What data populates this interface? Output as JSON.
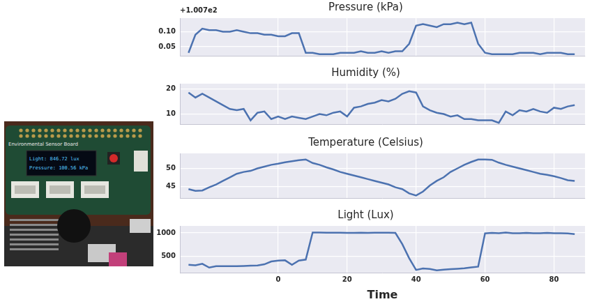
{
  "photo": {
    "board_label": "Environmental Sensor Board",
    "display_lines": [
      "Light: 846.72 lux",
      "Pressure: 100.56 kPa"
    ]
  },
  "chart_data": [
    {
      "type": "line",
      "title": "Pressure (kPa)",
      "annotation": "+1.007e2",
      "x": [
        -26,
        -24,
        -22,
        -20,
        -18,
        -16,
        -14,
        -12,
        -10,
        -8,
        -6,
        -4,
        -2,
        0,
        2,
        4,
        6,
        8,
        10,
        12,
        14,
        16,
        18,
        20,
        22,
        24,
        26,
        28,
        30,
        32,
        34,
        36,
        38,
        40,
        42,
        44,
        46,
        48,
        50,
        52,
        54,
        56,
        58,
        60,
        62,
        64,
        66,
        68,
        70,
        72,
        74,
        76,
        78,
        80,
        82,
        84,
        86
      ],
      "values": [
        100.73,
        100.79,
        100.81,
        100.805,
        100.805,
        100.8,
        100.8,
        100.805,
        100.8,
        100.795,
        100.795,
        100.79,
        100.79,
        100.785,
        100.785,
        100.795,
        100.795,
        100.73,
        100.73,
        100.725,
        100.725,
        100.725,
        100.73,
        100.73,
        100.73,
        100.735,
        100.73,
        100.73,
        100.735,
        100.73,
        100.735,
        100.735,
        100.76,
        100.82,
        100.825,
        100.82,
        100.815,
        100.825,
        100.825,
        100.83,
        100.825,
        100.83,
        100.76,
        100.73,
        100.725,
        100.725,
        100.725,
        100.725,
        100.73,
        100.73,
        100.73,
        100.725,
        100.73,
        100.73,
        100.73,
        100.725,
        100.725
      ],
      "color": "#4c72b0",
      "xlim": [
        -28.5,
        89
      ],
      "xticks": [
        0,
        20,
        40,
        60,
        80
      ],
      "ylim": [
        100.72,
        100.845
      ],
      "yticks": [
        {
          "value": 100.75,
          "label": "0.05"
        },
        {
          "value": 100.8,
          "label": "0.10"
        }
      ],
      "grid": true,
      "tick_labels": "y"
    },
    {
      "type": "line",
      "title": "Humidity (%)",
      "x": [
        -26,
        -24,
        -22,
        -20,
        -18,
        -16,
        -14,
        -12,
        -10,
        -8,
        -6,
        -4,
        -2,
        0,
        2,
        4,
        6,
        8,
        10,
        12,
        14,
        16,
        18,
        20,
        22,
        24,
        26,
        28,
        30,
        32,
        34,
        36,
        38,
        40,
        42,
        44,
        46,
        48,
        50,
        52,
        54,
        56,
        58,
        60,
        62,
        64,
        66,
        68,
        70,
        72,
        74,
        76,
        78,
        80,
        82,
        84,
        86
      ],
      "values": [
        18.5,
        16.5,
        18,
        16.5,
        15,
        13.5,
        12,
        11.5,
        12,
        7.5,
        10.5,
        11,
        8,
        9,
        8,
        9,
        8.5,
        8,
        9,
        10,
        9.5,
        10.5,
        11,
        9,
        12.5,
        13,
        14,
        14.5,
        15.5,
        15,
        16,
        18,
        19,
        18.5,
        13,
        11.5,
        10.5,
        10,
        9,
        9.5,
        8,
        8,
        7.5,
        7.5,
        7.5,
        6.5,
        11,
        9.5,
        11.5,
        11,
        12,
        11,
        10.5,
        12.5,
        12,
        13,
        13.5
      ],
      "color": "#4c72b0",
      "xlim": [
        -28.5,
        89
      ],
      "xticks": [
        0,
        20,
        40,
        60,
        80
      ],
      "ylim": [
        6,
        22
      ],
      "yticks": [
        10,
        20
      ],
      "grid": true,
      "tick_labels": "y"
    },
    {
      "type": "line",
      "title": "Temperature (Celsius)",
      "x": [
        -26,
        -24,
        -22,
        -20,
        -18,
        -16,
        -14,
        -12,
        -10,
        -8,
        -6,
        -4,
        -2,
        0,
        2,
        4,
        6,
        8,
        10,
        12,
        14,
        16,
        18,
        20,
        22,
        24,
        26,
        28,
        30,
        32,
        34,
        36,
        38,
        40,
        42,
        44,
        46,
        48,
        50,
        52,
        54,
        56,
        58,
        60,
        62,
        64,
        66,
        68,
        70,
        72,
        74,
        76,
        78,
        80,
        82,
        84,
        86
      ],
      "values": [
        44.2,
        43.7,
        43.8,
        44.7,
        45.5,
        46.5,
        47.5,
        48.5,
        49,
        49.3,
        50,
        50.5,
        51,
        51.3,
        51.7,
        52,
        52.3,
        52.5,
        51.5,
        51,
        50.3,
        49.7,
        49,
        48.5,
        48,
        47.5,
        47,
        46.5,
        46,
        45.5,
        44.7,
        44.2,
        43,
        42.4,
        43.5,
        45.2,
        46.5,
        47.5,
        49,
        50,
        51,
        51.8,
        52.5,
        52.5,
        52.4,
        51.6,
        51,
        50.5,
        50,
        49.5,
        49,
        48.5,
        48.2,
        47.8,
        47.3,
        46.7,
        46.5
      ],
      "color": "#4c72b0",
      "xlim": [
        -28.5,
        89
      ],
      "xticks": [
        0,
        20,
        40,
        60,
        80
      ],
      "ylim": [
        41.7,
        54.2
      ],
      "yticks": [
        45,
        50
      ],
      "grid": true,
      "tick_labels": "y"
    },
    {
      "type": "line",
      "title": "Light (Lux)",
      "x_label": "Time",
      "x": [
        -26,
        -24,
        -22,
        -20,
        -18,
        -16,
        -14,
        -12,
        -10,
        -8,
        -6,
        -4,
        -2,
        0,
        2,
        4,
        6,
        8,
        10,
        12,
        14,
        16,
        18,
        20,
        22,
        24,
        26,
        28,
        30,
        32,
        34,
        36,
        38,
        40,
        42,
        44,
        46,
        48,
        50,
        52,
        54,
        56,
        58,
        60,
        62,
        64,
        66,
        68,
        70,
        72,
        74,
        76,
        78,
        80,
        82,
        84,
        86
      ],
      "values": [
        320,
        310,
        340,
        260,
        290,
        290,
        290,
        290,
        295,
        300,
        305,
        330,
        390,
        410,
        415,
        320,
        410,
        430,
        1010,
        1010,
        1005,
        1005,
        1005,
        1000,
        1000,
        1005,
        1000,
        1005,
        1005,
        1005,
        1000,
        760,
        460,
        210,
        240,
        230,
        200,
        215,
        225,
        235,
        245,
        265,
        280,
        990,
        1000,
        995,
        1010,
        995,
        995,
        1000,
        995,
        995,
        1000,
        995,
        995,
        990,
        975
      ],
      "color": "#4c72b0",
      "xlim": [
        -28.5,
        89
      ],
      "xticks": [
        0,
        20,
        40,
        60,
        80
      ],
      "ylim": [
        140,
        1150
      ],
      "yticks": [
        500,
        1000
      ],
      "grid": true
    }
  ]
}
